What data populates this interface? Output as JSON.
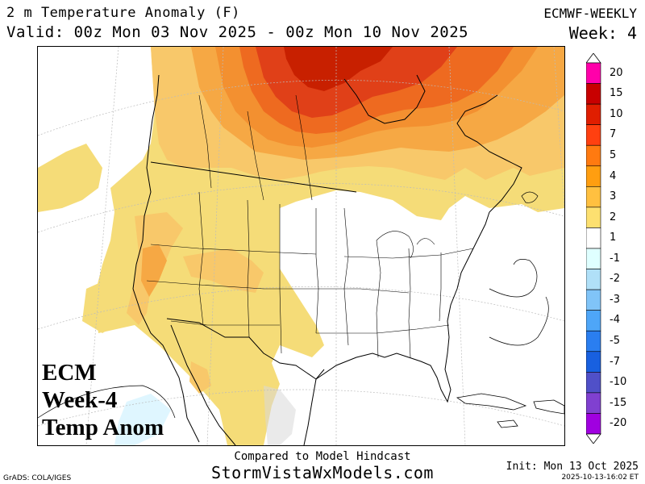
{
  "header": {
    "title": "2 m Temperature Anomaly (F)",
    "valid": "Valid: 00z Mon 03 Nov 2025 - 00z Mon 10 Nov 2025",
    "model": "ECMWF-WEEKLY",
    "week": "Week: 4"
  },
  "overlay": {
    "line1": "ECM",
    "line2": "Week-4",
    "line3": "Temp Anom"
  },
  "footer": {
    "compared": "Compared to Model Hindcast",
    "site": "StormVistaWxModels.com",
    "grads": "GrADS: COLA/IGES",
    "init": "Init: Mon 13 Oct 2025",
    "stamp": "2025-10-13-16:02 ET"
  },
  "colorbar": {
    "labels": [
      "20",
      "15",
      "10",
      "7",
      "5",
      "4",
      "3",
      "2",
      "1",
      "-1",
      "-2",
      "-3",
      "-4",
      "-5",
      "-7",
      "-10",
      "-15",
      "-20"
    ],
    "colors": [
      "#ff00aa",
      "#c80000",
      "#e01e00",
      "#ff4010",
      "#ff7a10",
      "#ff9e10",
      "#ffc040",
      "#fde070",
      "#ffffff",
      "#dfffff",
      "#b0e0f8",
      "#80c4f8",
      "#4ea6f8",
      "#2a7ef0",
      "#1860e0",
      "#5050c8",
      "#8040d0",
      "#a000e0"
    ]
  },
  "map": {
    "anomaly_colors": {
      "plus1": "#f5dc78",
      "plus2": "#f8c86a",
      "plus3": "#f6a844",
      "plus4": "#f39030",
      "plus5": "#ee6a20",
      "plus7": "#e04018",
      "plus10": "#c82000",
      "minus1": "#dff6ff",
      "neutral_grey": "#d8d8d8"
    }
  }
}
